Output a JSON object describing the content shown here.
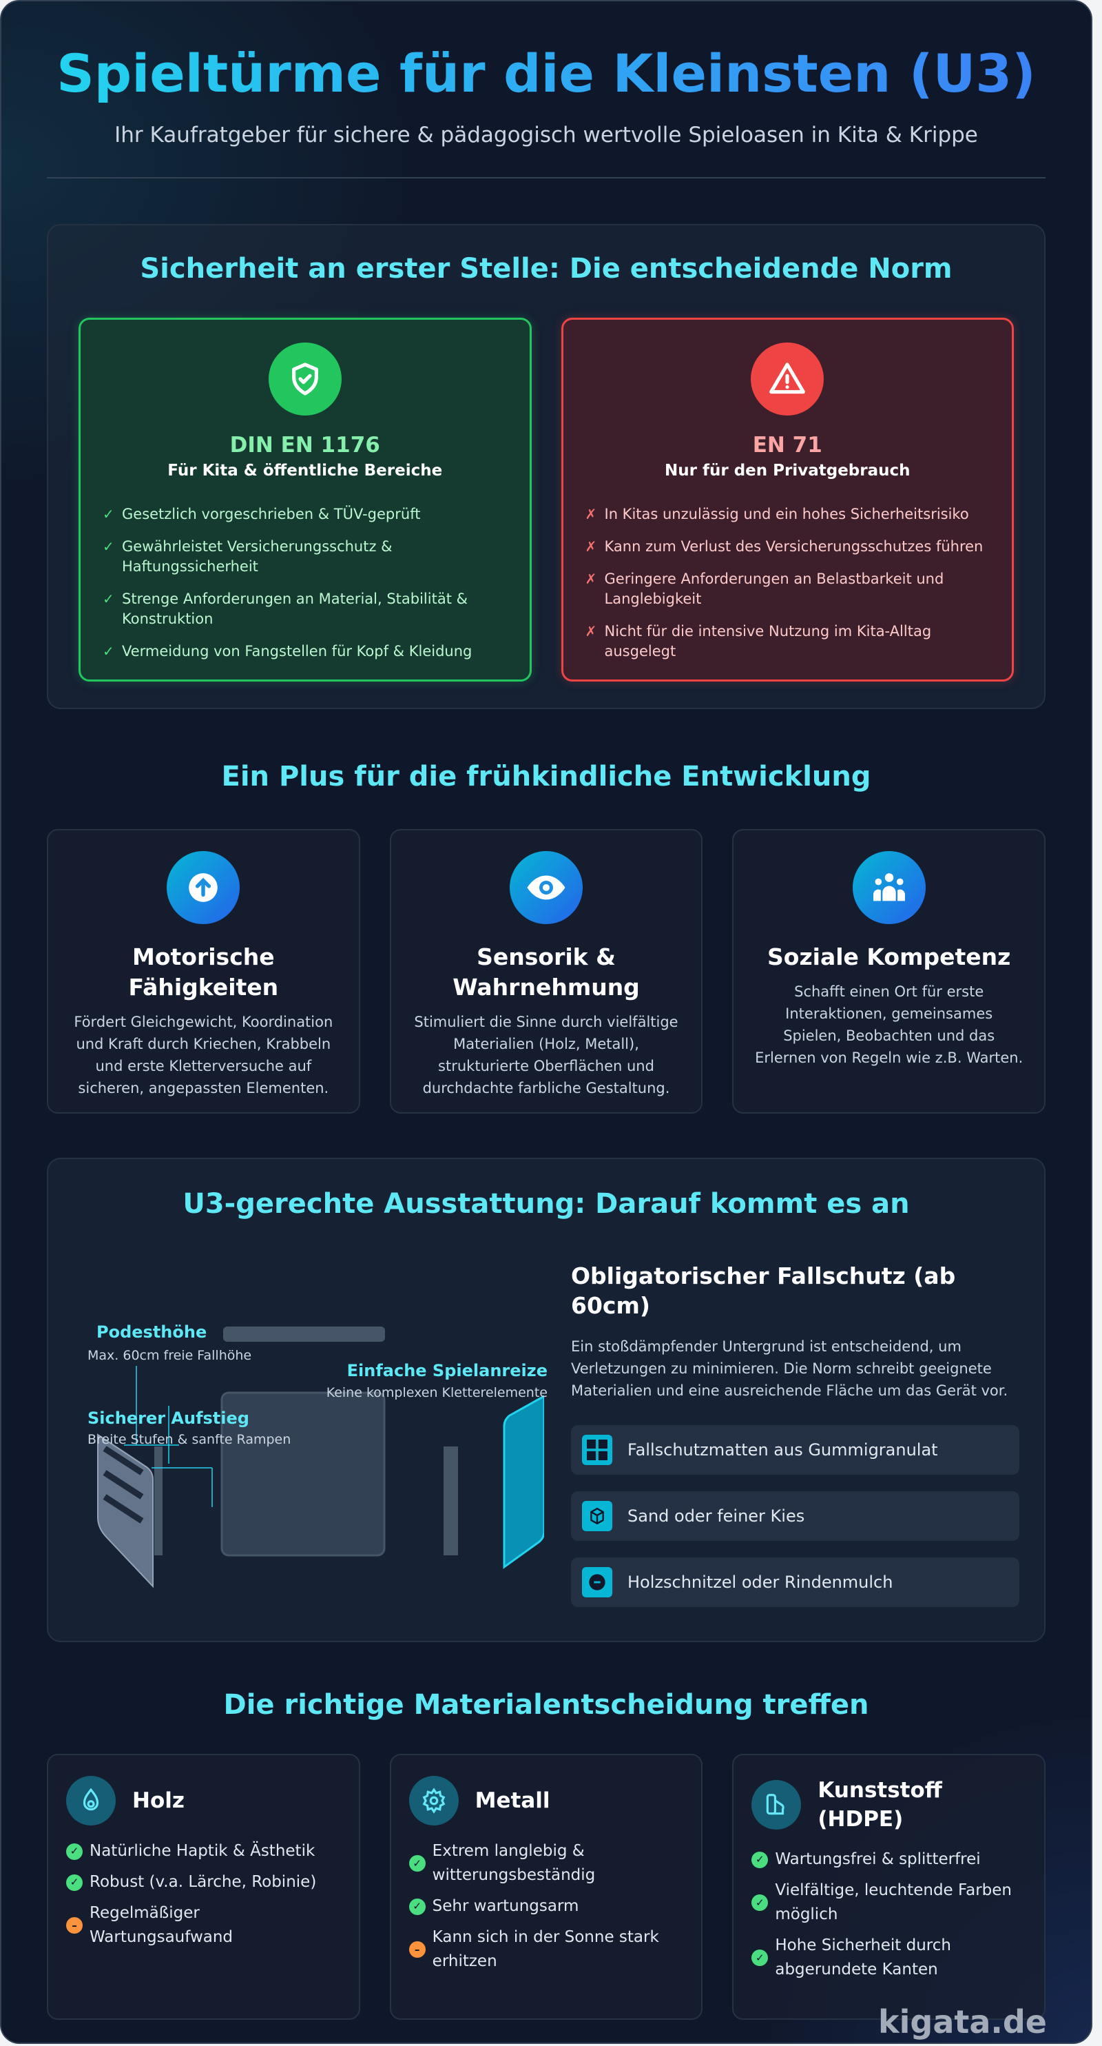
{
  "header": {
    "title": "Spieltürme für die Kleinsten (U3)",
    "subtitle": "Ihr Kaufratgeber für sichere & pädagogisch wertvolle Spieloasen in Kita & Krippe"
  },
  "safety": {
    "heading": "Sicherheit an erster Stelle: Die entscheidende Norm",
    "good": {
      "icon": "shield-check-icon",
      "color": "#22c55e",
      "title": "DIN EN 1176",
      "subtitle": "Für Kita & öffentliche Bereiche",
      "mark": "✓",
      "items": [
        "Gesetzlich vorgeschrieben & TÜV-geprüft",
        "Gewährleistet Versicherungsschutz & Haftungssicherheit",
        "Strenge Anforderungen an Material, Stabilität & Konstruktion",
        "Vermeidung von Fangstellen für Kopf & Kleidung"
      ]
    },
    "bad": {
      "icon": "warning-triangle-icon",
      "color": "#ef4444",
      "title": "EN 71",
      "subtitle": "Nur für den Privatgebrauch",
      "mark": "✗",
      "items": [
        "In Kitas unzulässig und ein hohes Sicherheitsrisiko",
        "Kann zum Verlust des Versicherungsschutzes führen",
        "Geringere Anforderungen an Belastbarkeit und Langlebigkeit",
        "Nicht für die intensive Nutzung im Kita-Alltag ausgelegt"
      ]
    }
  },
  "development": {
    "heading": "Ein Plus für die frühkindliche Entwicklung",
    "cards": [
      {
        "icon": "arrow-up-circle-icon",
        "title": "Motorische Fähigkeiten",
        "text": "Fördert Gleichgewicht, Koordination und Kraft durch Kriechen, Krabbeln und erste Kletterversuche auf sicheren, angepassten Elementen."
      },
      {
        "icon": "eye-icon",
        "title": "Sensorik & Wahrnehmung",
        "text": "Stimuliert die Sinne durch vielfältige Materialien (Holz, Metall), strukturierte Oberflächen und durchdachte farbliche Gestaltung."
      },
      {
        "icon": "users-icon",
        "title": "Soziale Kompetenz",
        "text": "Schafft einen Ort für erste Interaktionen, gemeinsames Spielen, Beobachten und das Erlernen von Regeln wie z.B. Warten."
      }
    ]
  },
  "equipment": {
    "heading": "U3-gerechte Ausstattung: Darauf kommt es an",
    "labels": {
      "platform": {
        "title": "Podesthöhe",
        "sub": "Max. 60cm freie Fallhöhe"
      },
      "play": {
        "title": "Einfache Spielanreize",
        "sub": "Keine komplexen Kletterelemente"
      },
      "ascent": {
        "title": "Sicherer Aufstieg",
        "sub": "Breite Stufen & sanfte Rampen"
      }
    },
    "fall": {
      "title": "Obligatorischer Fallschutz (ab 60cm)",
      "text": "Ein stoßdämpfender Untergrund ist entscheidend, um Verletzungen zu minimieren. Die Norm schreibt geeignete Materialien und eine ausreichende Fläche um das Gerät vor.",
      "items": [
        {
          "icon": "grid-mat-icon",
          "label": "Fallschutzmatten aus Gummigranulat"
        },
        {
          "icon": "cube-icon",
          "label": "Sand oder feiner Kies"
        },
        {
          "icon": "minus-circle-icon",
          "label": "Holzschnitzel oder Rindenmulch"
        }
      ]
    },
    "accent": "#06b6d4"
  },
  "materials": {
    "heading": "Die richtige Materialentscheidung treffen",
    "cards": [
      {
        "icon": "drop-icon",
        "title": "Holz",
        "items": [
          {
            "type": "pro",
            "text": "Natürliche Haptik & Ästhetik"
          },
          {
            "type": "pro",
            "text": "Robust (v.a. Lärche, Robinie)"
          },
          {
            "type": "con",
            "text": "Regelmäßiger Wartungsaufwand"
          }
        ]
      },
      {
        "icon": "gear-icon",
        "title": "Metall",
        "items": [
          {
            "type": "pro",
            "text": "Extrem langlebig & witterungsbeständig"
          },
          {
            "type": "pro",
            "text": "Sehr wartungsarm"
          },
          {
            "type": "con",
            "text": "Kann sich in der Sonne stark erhitzen"
          }
        ]
      },
      {
        "icon": "shapes-icon",
        "title": "Kunststoff (HDPE)",
        "items": [
          {
            "type": "pro",
            "text": "Wartungsfrei & splitterfrei"
          },
          {
            "type": "pro",
            "text": "Vielfältige, leuchtende Farben möglich"
          },
          {
            "type": "pro",
            "text": "Hohe Sicherheit durch abgerundete Kanten"
          }
        ]
      }
    ],
    "pro_color": "#4ade80",
    "con_color": "#fb923c"
  },
  "watermark": "kigata.de"
}
